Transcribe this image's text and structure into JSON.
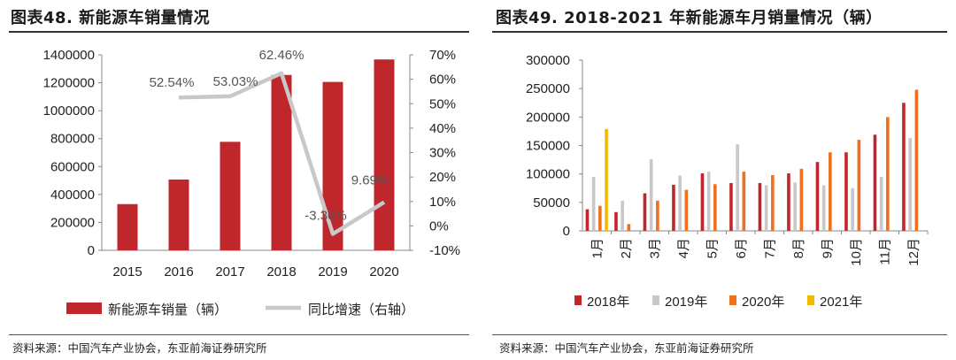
{
  "left": {
    "title": "图表48. 新能源车销量情况",
    "source": "资料来源：中国汽车产业协会，东亚前海证券研究所"
  },
  "right": {
    "title": "图表49. 2018-2021 年新能源车月销量情况（辆）",
    "source": "资料来源：中国汽车产业协会，东亚前海证券研究所"
  },
  "chart_data": [
    {
      "type": "bar",
      "categories": [
        "2015",
        "2016",
        "2017",
        "2018",
        "2019",
        "2020"
      ],
      "series": [
        {
          "name": "新能源车销量（辆）",
          "axis": "left",
          "type": "bar",
          "values": [
            331000,
            507000,
            777000,
            1256000,
            1206000,
            1367000
          ]
        },
        {
          "name": "同比增速（右轴）",
          "axis": "right",
          "type": "line",
          "values": [
            null,
            52.54,
            53.03,
            62.46,
            -3.3,
            9.69
          ],
          "labels": [
            "",
            "52.54%",
            "53.03%",
            "62.46%",
            "-3.30%",
            "9.69%"
          ]
        }
      ],
      "y_left": {
        "min": 0,
        "max": 1400000,
        "ticks": [
          "0",
          "200000",
          "400000",
          "600000",
          "800000",
          "1000000",
          "1200000",
          "1400000"
        ]
      },
      "y_right": {
        "min": -10,
        "max": 70,
        "ticks": [
          "-10%",
          "0%",
          "10%",
          "20%",
          "30%",
          "40%",
          "50%",
          "60%",
          "70%"
        ]
      },
      "legend": "bottom",
      "colors": {
        "bar": "#c0272d",
        "line": "#c8c8c8"
      }
    },
    {
      "type": "bar",
      "categories": [
        "1月",
        "2月",
        "3月",
        "4月",
        "5月",
        "6月",
        "7月",
        "8月",
        "9月",
        "10月",
        "11月",
        "12月"
      ],
      "series": [
        {
          "name": "2018年",
          "color": "#c0272d",
          "values": [
            38000,
            33000,
            66000,
            81000,
            101000,
            84000,
            84000,
            101000,
            121000,
            138000,
            169000,
            225000
          ]
        },
        {
          "name": "2019年",
          "color": "#c8c8c8",
          "values": [
            95000,
            53000,
            126000,
            97000,
            104000,
            152000,
            80000,
            85000,
            80000,
            75000,
            95000,
            163000
          ]
        },
        {
          "name": "2020年",
          "color": "#f07020",
          "values": [
            44000,
            12000,
            53000,
            72000,
            82000,
            104000,
            98000,
            109000,
            138000,
            160000,
            200000,
            248000
          ]
        },
        {
          "name": "2021年",
          "color": "#f5b800",
          "values": [
            179000,
            null,
            null,
            null,
            null,
            null,
            null,
            null,
            null,
            null,
            null,
            null
          ]
        }
      ],
      "y": {
        "min": 0,
        "max": 300000,
        "ticks": [
          "0",
          "50000",
          "100000",
          "150000",
          "200000",
          "250000",
          "300000"
        ]
      },
      "legend": "bottom"
    }
  ]
}
